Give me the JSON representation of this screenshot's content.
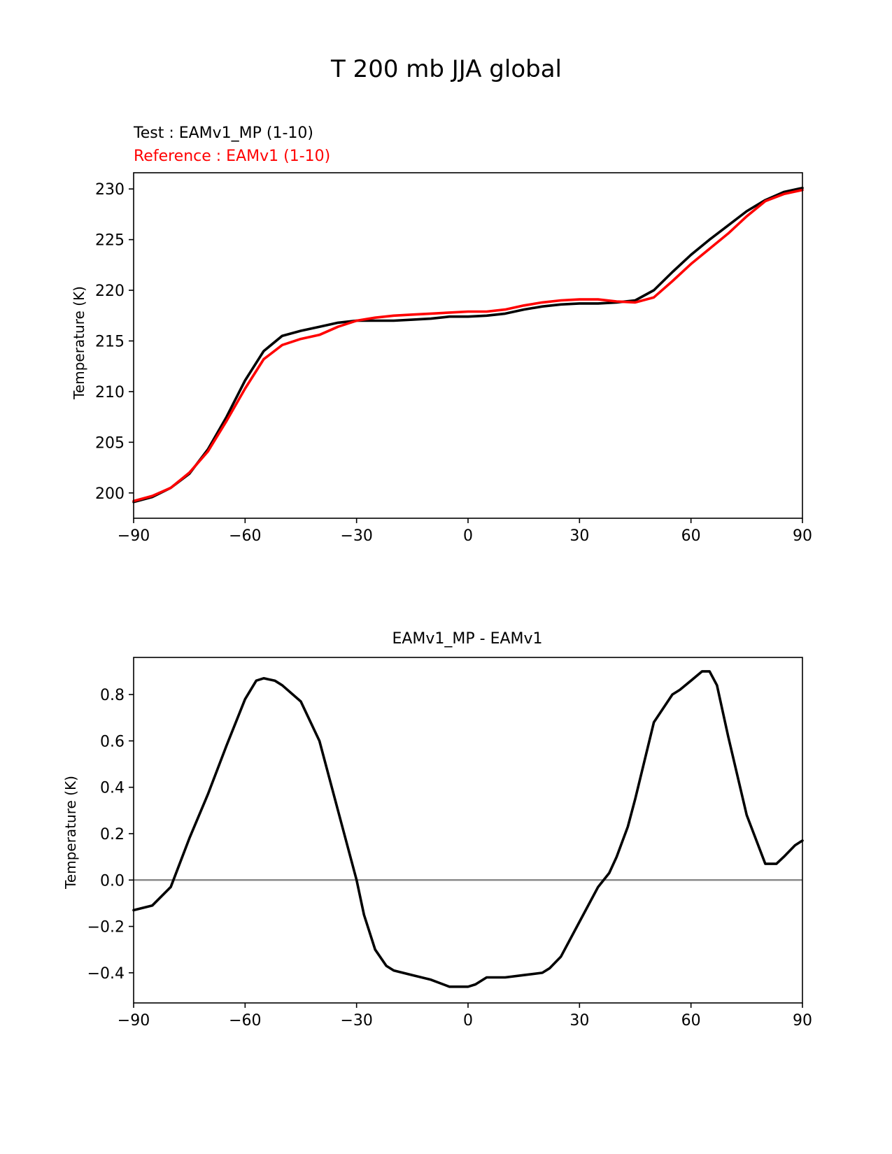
{
  "figure": {
    "title": "T 200 mb JJA global"
  },
  "chart_data": [
    {
      "type": "line",
      "test_label": "Test : EAMv1_MP (1-10)",
      "reference_label": "Reference : EAMv1 (1-10)",
      "title": "",
      "xlabel": "",
      "ylabel": "Temperature (K)",
      "xlim": [
        -90,
        90
      ],
      "ylim": [
        197.5,
        231.6
      ],
      "xticks": [
        -90,
        -60,
        -30,
        0,
        30,
        60,
        90
      ],
      "xtick_labels": [
        "−90",
        "−60",
        "−30",
        "0",
        "30",
        "60",
        "90"
      ],
      "yticks": [
        200,
        205,
        210,
        215,
        220,
        225,
        230
      ],
      "ytick_labels": [
        "200",
        "205",
        "210",
        "215",
        "220",
        "225",
        "230"
      ],
      "grid": false,
      "x": [
        -90,
        -85,
        -80,
        -75,
        -70,
        -65,
        -60,
        -55,
        -50,
        -45,
        -40,
        -35,
        -30,
        -25,
        -20,
        -15,
        -10,
        -5,
        0,
        5,
        10,
        15,
        20,
        25,
        30,
        35,
        40,
        45,
        50,
        55,
        60,
        65,
        70,
        75,
        80,
        85,
        90
      ],
      "series": [
        {
          "name": "Test",
          "color": "#000000",
          "values": [
            199.1,
            199.6,
            200.5,
            201.9,
            204.3,
            207.5,
            211.1,
            214.0,
            215.5,
            216.0,
            216.4,
            216.8,
            217.0,
            217.0,
            217.0,
            217.1,
            217.2,
            217.4,
            217.4,
            217.5,
            217.7,
            218.1,
            218.4,
            218.6,
            218.7,
            218.7,
            218.8,
            219.0,
            220.0,
            221.8,
            223.5,
            225.0,
            226.4,
            227.8,
            228.9,
            229.7,
            230.1
          ]
        },
        {
          "name": "Reference",
          "color": "#ff0000",
          "values": [
            199.2,
            199.7,
            200.5,
            202.0,
            204.1,
            207.1,
            210.3,
            213.2,
            214.6,
            215.2,
            215.6,
            216.4,
            217.0,
            217.3,
            217.5,
            217.6,
            217.7,
            217.8,
            217.9,
            217.9,
            218.1,
            218.5,
            218.8,
            219.0,
            219.1,
            219.1,
            218.9,
            218.8,
            219.3,
            220.9,
            222.6,
            224.1,
            225.6,
            227.3,
            228.8,
            229.5,
            229.9
          ]
        }
      ]
    },
    {
      "type": "line",
      "title": "EAMv1_MP - EAMv1",
      "xlabel": "",
      "ylabel": "Temperature (K)",
      "xlim": [
        -90,
        90
      ],
      "ylim": [
        -0.53,
        0.96
      ],
      "xticks": [
        -90,
        -60,
        -30,
        0,
        30,
        60,
        90
      ],
      "xtick_labels": [
        "−90",
        "−60",
        "−30",
        "0",
        "30",
        "60",
        "90"
      ],
      "yticks": [
        -0.4,
        -0.2,
        0.0,
        0.2,
        0.4,
        0.6,
        0.8
      ],
      "ytick_labels": [
        "−0.4",
        "−0.2",
        "0.0",
        "0.2",
        "0.4",
        "0.6",
        "0.8"
      ],
      "grid": false,
      "zero_line": {
        "value": 0,
        "color": "#808080"
      },
      "x": [
        -90,
        -85,
        -80,
        -75,
        -70,
        -65,
        -60,
        -57,
        -55,
        -52,
        -50,
        -45,
        -40,
        -35,
        -30,
        -28,
        -25,
        -22,
        -20,
        -15,
        -10,
        -5,
        -2,
        0,
        2,
        5,
        7,
        10,
        15,
        20,
        22,
        25,
        30,
        35,
        38,
        40,
        43,
        45,
        50,
        55,
        57,
        60,
        63,
        65,
        67,
        70,
        75,
        80,
        82,
        83,
        85,
        88,
        90
      ],
      "series": [
        {
          "name": "EAMv1_MP - EAMv1",
          "color": "#000000",
          "values": [
            -0.13,
            -0.11,
            -0.03,
            0.18,
            0.37,
            0.58,
            0.78,
            0.86,
            0.87,
            0.86,
            0.84,
            0.77,
            0.6,
            0.3,
            0.0,
            -0.15,
            -0.3,
            -0.37,
            -0.39,
            -0.41,
            -0.43,
            -0.46,
            -0.46,
            -0.46,
            -0.45,
            -0.42,
            -0.42,
            -0.42,
            -0.41,
            -0.4,
            -0.38,
            -0.33,
            -0.18,
            -0.03,
            0.03,
            0.1,
            0.23,
            0.35,
            0.68,
            0.8,
            0.82,
            0.86,
            0.9,
            0.9,
            0.84,
            0.62,
            0.28,
            0.07,
            0.07,
            0.07,
            0.1,
            0.15,
            0.17
          ]
        }
      ]
    }
  ]
}
